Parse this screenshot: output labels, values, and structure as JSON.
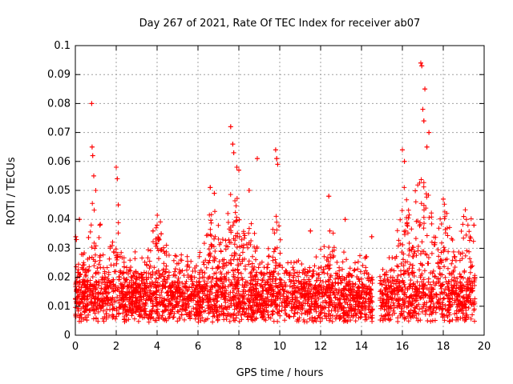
{
  "chart_data": {
    "type": "scatter",
    "title": "Day 267 of 2021, Rate Of TEC Index for receiver ab07",
    "xlabel": "GPS time / hours",
    "ylabel": "ROTI / TECUs",
    "xlim": [
      0,
      20
    ],
    "ylim": [
      0,
      0.1
    ],
    "x_ticks": [
      0,
      2,
      4,
      6,
      8,
      10,
      12,
      14,
      16,
      18,
      20
    ],
    "y_ticks": [
      0,
      0.01,
      0.02,
      0.03,
      0.04,
      0.05,
      0.06,
      0.07,
      0.08,
      0.09,
      0.1
    ],
    "x_tick_labels": [
      "0",
      "2",
      "4",
      "6",
      "8",
      "10",
      "12",
      "14",
      "16",
      "18",
      "20"
    ],
    "y_tick_labels": [
      "0",
      "0.01",
      "0.02",
      "0.03",
      "0.04",
      "0.05",
      "0.06",
      "0.07",
      "0.08",
      "0.09",
      "0.1"
    ],
    "grid": true,
    "marker": "+",
    "marker_color": "#ff0000",
    "data_gap_hours": [
      14.55,
      14.9
    ],
    "series": [
      {
        "name": "ROTI",
        "x": [
          0.02,
          0.05,
          0.2,
          0.8,
          0.82,
          0.85,
          0.9,
          1.0,
          1.2,
          2.0,
          2.05,
          2.1,
          3.8,
          4.0,
          4.2,
          6.6,
          6.8,
          7.6,
          7.7,
          7.75,
          7.9,
          8.0,
          8.5,
          8.9,
          9.8,
          9.85,
          9.9,
          11.5,
          12.4,
          12.45,
          13.2,
          14.5,
          16.0,
          16.1,
          16.9,
          16.95,
          17.0,
          17.05,
          17.1,
          17.2,
          17.3,
          18.0,
          19.0,
          19.5
        ],
        "y": [
          0.034,
          0.033,
          0.04,
          0.08,
          0.065,
          0.062,
          0.055,
          0.05,
          0.038,
          0.058,
          0.054,
          0.045,
          0.036,
          0.038,
          0.035,
          0.051,
          0.049,
          0.072,
          0.066,
          0.063,
          0.058,
          0.057,
          0.05,
          0.061,
          0.064,
          0.061,
          0.059,
          0.036,
          0.048,
          0.036,
          0.04,
          0.034,
          0.064,
          0.06,
          0.094,
          0.093,
          0.078,
          0.074,
          0.085,
          0.065,
          0.07,
          0.047,
          0.041,
          0.038
        ]
      }
    ]
  }
}
